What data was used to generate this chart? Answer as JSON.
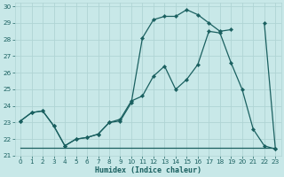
{
  "xlabel": "Humidex (Indice chaleur)",
  "bg_color": "#c8e8e8",
  "grid_color": "#b0d4d4",
  "line_color": "#1a6060",
  "xlim": [
    -0.5,
    23.5
  ],
  "ylim": [
    21,
    30.2
  ],
  "yticks": [
    21,
    22,
    23,
    24,
    25,
    26,
    27,
    28,
    29,
    30
  ],
  "xticks": [
    0,
    1,
    2,
    3,
    4,
    5,
    6,
    7,
    8,
    9,
    10,
    11,
    12,
    13,
    14,
    15,
    16,
    17,
    18,
    19,
    20,
    21,
    22,
    23
  ],
  "line_top_x": [
    0,
    1,
    2,
    3,
    4,
    5,
    6,
    7,
    8,
    9,
    10,
    11,
    12,
    13,
    14,
    15,
    16,
    17,
    18,
    19,
    20,
    21,
    22,
    23
  ],
  "line_top_y": [
    23.1,
    23.6,
    23.7,
    22.8,
    21.6,
    22.0,
    22.1,
    22.3,
    23.0,
    23.1,
    24.2,
    28.1,
    29.2,
    29.4,
    29.4,
    29.8,
    29.5,
    29.0,
    28.5,
    28.6,
    null,
    null,
    29.0,
    21.4
  ],
  "line_mid_x": [
    0,
    1,
    2,
    3,
    4,
    5,
    6,
    7,
    8,
    9,
    10,
    11,
    12,
    13,
    14,
    15,
    16,
    17,
    18,
    19,
    20,
    21,
    22,
    23
  ],
  "line_mid_y": [
    23.1,
    23.6,
    23.7,
    22.8,
    21.6,
    22.0,
    22.1,
    22.3,
    23.0,
    23.2,
    24.3,
    24.6,
    25.8,
    26.4,
    25.0,
    25.6,
    26.5,
    28.5,
    28.4,
    26.6,
    25.0,
    22.6,
    21.6,
    21.4
  ],
  "line_bot_x": [
    0,
    4,
    10,
    22,
    23
  ],
  "line_bot_y": [
    21.5,
    21.5,
    21.5,
    21.5,
    21.5
  ],
  "markersize": 2.2,
  "linewidth": 0.9,
  "tick_fontsize": 5.2,
  "xlabel_fontsize": 6.0
}
